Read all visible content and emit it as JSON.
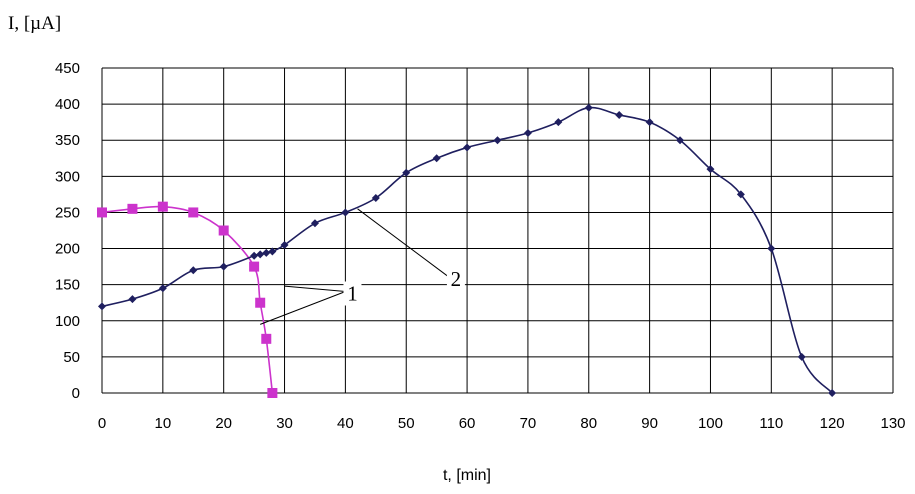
{
  "chart_data": {
    "type": "line",
    "xlabel": "t, [min]",
    "ylabel": "I, [µA]",
    "xlim": [
      0,
      130
    ],
    "ylim": [
      0,
      450
    ],
    "x_ticks": [
      0,
      10,
      20,
      30,
      40,
      50,
      60,
      70,
      80,
      90,
      100,
      110,
      120,
      130
    ],
    "y_ticks": [
      0,
      50,
      100,
      150,
      200,
      250,
      300,
      350,
      400,
      450
    ],
    "grid": true,
    "legend": "none",
    "series": [
      {
        "name": "1",
        "color": "#cc33cc",
        "marker": "square",
        "points": [
          [
            0,
            250
          ],
          [
            5,
            255
          ],
          [
            10,
            258
          ],
          [
            15,
            250
          ],
          [
            20,
            225
          ],
          [
            25,
            175
          ],
          [
            26,
            125
          ],
          [
            27,
            75
          ],
          [
            28,
            0
          ]
        ]
      },
      {
        "name": "2",
        "color": "#1f1f5f",
        "marker": "diamond",
        "points": [
          [
            0,
            120
          ],
          [
            5,
            130
          ],
          [
            10,
            145
          ],
          [
            15,
            170
          ],
          [
            20,
            175
          ],
          [
            25,
            190
          ],
          [
            26,
            192
          ],
          [
            27,
            194
          ],
          [
            28,
            196
          ],
          [
            30,
            205
          ],
          [
            35,
            235
          ],
          [
            40,
            250
          ],
          [
            45,
            270
          ],
          [
            50,
            305
          ],
          [
            55,
            325
          ],
          [
            60,
            340
          ],
          [
            65,
            350
          ],
          [
            70,
            360
          ],
          [
            75,
            375
          ],
          [
            80,
            395
          ],
          [
            85,
            385
          ],
          [
            90,
            375
          ],
          [
            95,
            350
          ],
          [
            100,
            310
          ],
          [
            105,
            275
          ],
          [
            110,
            200
          ],
          [
            115,
            50
          ],
          [
            120,
            0
          ]
        ]
      }
    ],
    "annotations": [
      {
        "text": "1",
        "x": 41,
        "y": 135,
        "targets": [
          [
            26,
            95
          ],
          [
            30,
            148
          ]
        ]
      },
      {
        "text": "2",
        "x": 58,
        "y": 155,
        "targets": [
          [
            42,
            255
          ]
        ]
      }
    ]
  }
}
